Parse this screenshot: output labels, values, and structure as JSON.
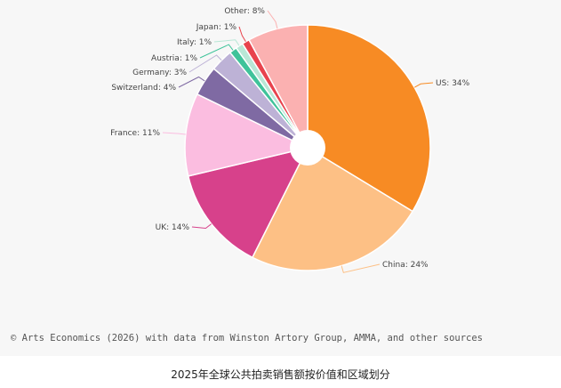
{
  "chart_data": {
    "type": "pie",
    "donut": true,
    "slices": [
      {
        "label": "US: 34%",
        "value": 34,
        "color": "#f78b24"
      },
      {
        "label": "China: 24%",
        "value": 24,
        "color": "#fdc085"
      },
      {
        "label": "UK: 14%",
        "value": 14,
        "color": "#d7418b"
      },
      {
        "label": "France: 11%",
        "value": 11,
        "color": "#fbbde0"
      },
      {
        "label": "Switzerland: 4%",
        "value": 4,
        "color": "#7f6aa3"
      },
      {
        "label": "Germany: 3%",
        "value": 3,
        "color": "#bdb2d6"
      },
      {
        "label": "Austria: 1%",
        "value": 1,
        "color": "#3fc39a"
      },
      {
        "label": "Italy: 1%",
        "value": 1,
        "color": "#b9e7d6"
      },
      {
        "label": "Japan: 1%",
        "value": 1,
        "color": "#e8434d"
      },
      {
        "label": "Other: 8%",
        "value": 8,
        "color": "#fbb1b1"
      }
    ],
    "start_angle_deg": 0,
    "direction": "clockwise",
    "legend": "none"
  },
  "source_note": "© Arts Economics (2026) with data from Winston Artory Group, AMMA, and other sources",
  "caption": "2025年全球公共拍卖销售额按价值和区域划分"
}
